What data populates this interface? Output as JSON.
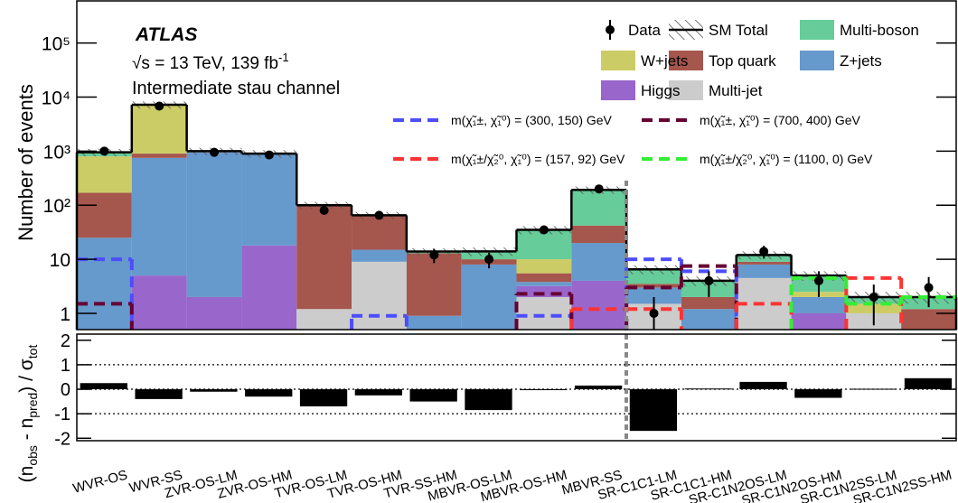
{
  "chart_data": {
    "type": "bar",
    "stacked": true,
    "log_y": true,
    "atlas_label": "ATLAS",
    "energy_label": [
      "√s = 13 TeV, 139 fb",
      "-1"
    ],
    "channel_label": "Intermediate stau channel",
    "ylabel": "Number of events",
    "categories": [
      "WVR-OS",
      "WVR-SS",
      "ZVR-OS-LM",
      "ZVR-OS-HM",
      "TVR-OS-LM",
      "TVR-OS-HM",
      "TVR-SS-HM",
      "MBVR-OS-LM",
      "MBVR-OS-HM",
      "MBVR-SS",
      "SR-C1C1-LM",
      "SR-C1C1-HM",
      "SR-C1N2OS-LM",
      "SR-C1N2OS-HM",
      "SR-C1N2SS-LM",
      "SR-C1N2SS-HM"
    ],
    "ylim": [
      0.5,
      600000
    ],
    "yticks": [
      1,
      10,
      {
        "value": 100,
        "label": "10²"
      },
      {
        "value": 1000,
        "label": "10³"
      },
      {
        "value": 10000,
        "label": "10⁴"
      },
      {
        "value": 100000,
        "label": "10⁵"
      }
    ],
    "series": [
      {
        "name": "Multi-jet",
        "color": "#cccccc",
        "values": [
          0,
          0,
          0,
          0,
          1.2,
          9,
          0,
          0,
          2,
          0,
          1.5,
          0,
          4.5,
          0,
          1,
          0.5
        ]
      },
      {
        "name": "Higgs",
        "color": "#9966cc",
        "values": [
          0,
          5,
          2,
          18,
          0,
          0,
          0,
          0,
          1.2,
          4,
          0,
          0,
          0,
          1,
          0,
          0
        ]
      },
      {
        "name": "Z+jets",
        "color": "#6699cc",
        "values": [
          25,
          745,
          948,
          862,
          0,
          6,
          0.9,
          8,
          0.6,
          16,
          1.5,
          1.2,
          3.5,
          1,
          0,
          0
        ]
      },
      {
        "name": "Top quark",
        "color": "#a5564d",
        "values": [
          145,
          150,
          20,
          0,
          98.8,
          50,
          12,
          2,
          1.7,
          22,
          0.5,
          0.8,
          1,
          0,
          0,
          0.7
        ]
      },
      {
        "name": "W+jets",
        "color": "#cccc66",
        "values": [
          630,
          6100,
          10,
          0,
          0,
          0,
          0,
          0,
          4.5,
          0,
          0,
          0,
          0,
          0.5,
          0.5,
          0
        ]
      },
      {
        "name": "Multi-boson",
        "color": "#66cc99",
        "values": [
          150,
          200,
          20,
          20,
          0,
          0,
          1,
          4,
          25,
          150,
          3,
          2,
          3,
          2.5,
          0.5,
          0.8
        ]
      }
    ],
    "sm_total": {
      "name": "SM Total",
      "uncertainty": [
        150,
        1100,
        150,
        140,
        15,
        10,
        2,
        2.5,
        6,
        30,
        1.2,
        0.8,
        2,
        1,
        0.5,
        0.5
      ]
    },
    "data": {
      "name": "Data",
      "values": [
        1000,
        6800,
        950,
        850,
        80,
        65,
        12,
        10,
        35,
        200,
        1,
        4,
        14,
        4,
        2,
        3
      ],
      "errors": [
        32,
        82,
        31,
        29,
        9,
        8,
        3.5,
        3.2,
        6,
        14,
        1,
        2,
        3.7,
        2,
        1.4,
        1.7
      ]
    },
    "signals": [
      {
        "name": "m(χ̃₁±, χ̃₁⁰) = (300, 150) GeV",
        "color": "#4d4dff",
        "values": [
          10,
          null,
          null,
          null,
          null,
          0.9,
          null,
          null,
          0.9,
          null,
          10,
          6,
          null,
          null,
          null,
          null
        ]
      },
      {
        "name": "m(χ̃₁±, χ̃₁⁰) = (700, 400) GeV",
        "color": "#660033",
        "values": [
          1.5,
          null,
          null,
          null,
          null,
          null,
          null,
          null,
          2.3,
          null,
          3,
          7.5,
          null,
          null,
          null,
          null
        ]
      },
      {
        "name": "m(χ̃₁±/χ̃₂⁰, χ̃₁⁰) = (157, 92) GeV",
        "color": "#ff3333",
        "values": [
          null,
          null,
          null,
          null,
          null,
          null,
          null,
          null,
          null,
          1.2,
          1.2,
          null,
          1.5,
          null,
          4.5,
          null
        ]
      },
      {
        "name": "m(χ̃₁±/χ̃₂⁰, χ̃₁⁰) = (1100, 0) GeV",
        "color": "#33ee33",
        "values": [
          null,
          null,
          null,
          null,
          null,
          null,
          null,
          null,
          null,
          null,
          null,
          null,
          null,
          4.5,
          1.5,
          2
        ]
      }
    ],
    "ratio": {
      "ylabel": [
        "(n",
        "obs",
        " - n",
        "pred",
        ") / σ",
        "tot"
      ],
      "values": [
        0.25,
        -0.4,
        -0.1,
        -0.3,
        -0.7,
        -0.25,
        -0.5,
        -0.85,
        -0.03,
        0.15,
        -1.7,
        0.03,
        0.3,
        -0.35,
        0.02,
        0.45
      ],
      "ylim": [
        -2.1,
        2.25
      ],
      "yticks": [
        -2,
        -1,
        0,
        1,
        2
      ],
      "grid": true
    }
  }
}
